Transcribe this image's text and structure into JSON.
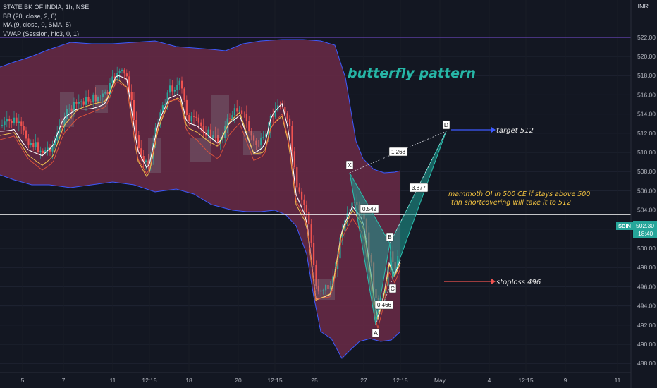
{
  "legend": {
    "symbol": "STATE BK OF INDIA, 1h, NSE",
    "bb": "BB (20, close, 2, 0)",
    "ma": "MA (9, close, 0, SMA, 5)",
    "vwap": "VWAP (Session, hlc3, 0, 1)"
  },
  "currency": "INR",
  "price_axis": [
    "522.00",
    "520.00",
    "518.00",
    "516.00",
    "514.00",
    "512.00",
    "510.00",
    "508.00",
    "506.00",
    "504.00",
    "502.00",
    "500.00",
    "498.00",
    "496.00",
    "494.00",
    "492.00",
    "490.00",
    "488.00"
  ],
  "time_axis": [
    "5",
    "7",
    "11",
    "12:15",
    "18",
    "20",
    "12:15",
    "25",
    "27",
    "12:15",
    "May",
    "4",
    "12:15",
    "9",
    "11"
  ],
  "price_badge": {
    "symbol": "SBIN",
    "price": "502.30",
    "time": "18:40"
  },
  "annotations": {
    "title": "butterfly pattern",
    "note_line1": "mammoth OI in 500 CE if stays above 500",
    "note_line2": "thn shortcovering will take it to 512",
    "target": "target 512",
    "stoploss": "stoploss 496"
  },
  "pattern_points": {
    "X": "X",
    "A": "A",
    "B": "B",
    "C": "C",
    "D": "D"
  },
  "ratios": {
    "xb": "0.542",
    "ac": "0.466",
    "xd": "1.268",
    "bd": "3.877"
  },
  "colors": {
    "background": "#131722",
    "bb_band": "#6b2a47",
    "bb_border": "#3d5afe",
    "up_candle": "#26a69a",
    "down_candle": "#ef5350",
    "pattern_fill": "#1e9e94",
    "resistance": "#7b4fd9"
  }
}
